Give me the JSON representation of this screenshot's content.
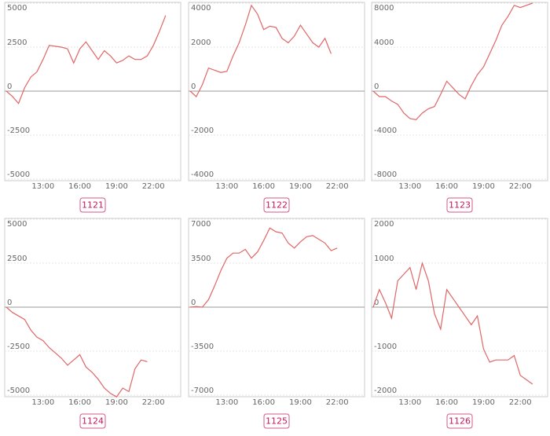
{
  "chart_data": [
    {
      "type": "line",
      "title": "1121",
      "color": "#e06666",
      "categories": [
        null,
        null,
        null,
        null,
        null,
        null,
        "13:00",
        null,
        null,
        null,
        null,
        null,
        "16:00",
        null,
        null,
        null,
        null,
        null,
        "19:00",
        null,
        null,
        null,
        null,
        null,
        "22:00",
        null,
        null
      ],
      "values": [
        0,
        -300,
        -700,
        200,
        800,
        1100,
        1800,
        2600,
        2550,
        2500,
        2400,
        1600,
        2400,
        2800,
        2300,
        1800,
        2300,
        2000,
        1600,
        1750,
        2000,
        1800,
        1800,
        2000,
        2600,
        3400,
        4300
      ],
      "ylim": [
        -5000,
        5000
      ],
      "yticks": [
        5000,
        2500,
        0,
        -2500,
        -5000
      ],
      "grid": true
    },
    {
      "type": "line",
      "title": "1122",
      "color": "#e06666",
      "categories": [
        null,
        null,
        null,
        null,
        null,
        null,
        "13:00",
        null,
        null,
        null,
        null,
        null,
        "16:00",
        null,
        null,
        null,
        null,
        null,
        "19:00",
        null,
        null,
        null,
        null,
        null,
        "22:00",
        null,
        null
      ],
      "values": [
        0,
        -250,
        300,
        1050,
        950,
        850,
        900,
        1600,
        2200,
        3000,
        3900,
        3500,
        2800,
        2950,
        2900,
        2400,
        2200,
        2500,
        3000,
        2600,
        2200,
        2000,
        2400,
        1700,
        null,
        null,
        null
      ],
      "ylim": [
        -4000,
        4000
      ],
      "yticks": [
        4000,
        2000,
        0,
        -2000,
        -4000
      ],
      "grid": true
    },
    {
      "type": "line",
      "title": "1123",
      "color": "#e06666",
      "categories": [
        null,
        null,
        null,
        null,
        null,
        null,
        "13:00",
        null,
        null,
        null,
        null,
        null,
        "16:00",
        null,
        null,
        null,
        null,
        null,
        "19:00",
        null,
        null,
        null,
        null,
        null,
        "22:00",
        null,
        null
      ],
      "values": [
        0,
        -500,
        -500,
        -900,
        -1200,
        -2000,
        -2500,
        -2600,
        -2000,
        -1600,
        -1400,
        -300,
        900,
        300,
        -300,
        -700,
        500,
        1500,
        2200,
        3400,
        4600,
        6000,
        6800,
        7800,
        7600,
        7800,
        8000
      ],
      "ylim": [
        -8000,
        8000
      ],
      "yticks": [
        8000,
        4000,
        0,
        -4000,
        -8000
      ],
      "grid": true
    },
    {
      "type": "line",
      "title": "1124",
      "color": "#e06666",
      "categories": [
        null,
        null,
        null,
        null,
        null,
        null,
        "13:00",
        null,
        null,
        null,
        null,
        null,
        "16:00",
        null,
        null,
        null,
        null,
        null,
        "19:00",
        null,
        null,
        null,
        null,
        null,
        "22:00",
        null,
        null
      ],
      "values": [
        0,
        -300,
        -500,
        -700,
        -1300,
        -1700,
        -1900,
        -2300,
        -2600,
        -2900,
        -3300,
        -3000,
        -2700,
        -3400,
        -3700,
        -4100,
        -4600,
        -4900,
        -5100,
        -4600,
        -4800,
        -3500,
        -3000,
        -3100,
        null,
        null,
        null
      ],
      "ylim": [
        -5000,
        5000
      ],
      "yticks": [
        5000,
        2500,
        0,
        -2500,
        -5000
      ],
      "grid": true
    },
    {
      "type": "line",
      "title": "1125",
      "color": "#e06666",
      "categories": [
        null,
        null,
        null,
        null,
        null,
        null,
        "13:00",
        null,
        null,
        null,
        null,
        null,
        "16:00",
        null,
        null,
        null,
        null,
        null,
        "19:00",
        null,
        null,
        null,
        null,
        null,
        "22:00",
        null,
        null
      ],
      "values": [
        0,
        50,
        0,
        600,
        1700,
        2900,
        3900,
        4300,
        4300,
        4600,
        3900,
        4400,
        5300,
        6300,
        6000,
        5900,
        5100,
        4700,
        5200,
        5600,
        5700,
        5400,
        5100,
        4500,
        4700,
        null,
        null
      ],
      "ylim": [
        -7000,
        7000
      ],
      "yticks": [
        7000,
        3500,
        0,
        -3500,
        -7000
      ],
      "grid": true
    },
    {
      "type": "line",
      "title": "1126",
      "color": "#e06666",
      "categories": [
        null,
        null,
        null,
        null,
        null,
        null,
        "13:00",
        null,
        null,
        null,
        null,
        null,
        "16:00",
        null,
        null,
        null,
        null,
        null,
        "19:00",
        null,
        null,
        null,
        null,
        null,
        "22:00",
        null,
        null
      ],
      "values": [
        0,
        400,
        100,
        -250,
        600,
        750,
        900,
        400,
        1000,
        600,
        -150,
        -500,
        400,
        200,
        0,
        -200,
        -400,
        -200,
        -950,
        -1250,
        -1200,
        -1200,
        -1200,
        -1100,
        -1550,
        -1650,
        -1750
      ],
      "ylim": [
        -2000,
        2000
      ],
      "yticks": [
        2000,
        1000,
        0,
        -1000,
        -2000
      ],
      "grid": true
    }
  ]
}
